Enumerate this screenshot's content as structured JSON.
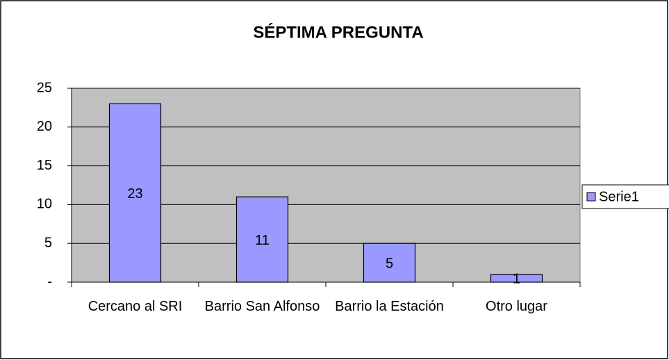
{
  "chart_data": {
    "type": "bar",
    "title": "SÉPTIMA PREGUNTA",
    "categories": [
      "Cercano al SRI",
      "Barrio San Alfonso",
      "Barrio la Estación",
      "Otro lugar"
    ],
    "series": [
      {
        "name": "Serie1",
        "color": "#9999ff",
        "values": [
          23,
          11,
          5,
          1
        ]
      }
    ],
    "ylim": [
      0,
      25
    ],
    "yticks": [
      {
        "value": 0,
        "label": "-"
      },
      5,
      10,
      15,
      20,
      25
    ],
    "grid": true,
    "legend": "right"
  }
}
